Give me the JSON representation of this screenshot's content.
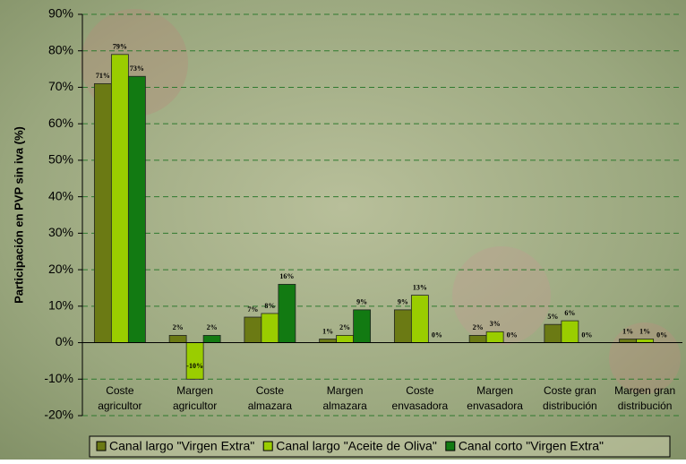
{
  "chart_data": {
    "type": "bar",
    "y_axis_label": "Participación en PVP sin iva (%)",
    "categories": [
      [
        "Coste",
        "agricultor"
      ],
      [
        "Margen",
        "agricultor"
      ],
      [
        "Coste",
        "almazara"
      ],
      [
        "Margen",
        "almazara"
      ],
      [
        "Coste",
        "envasadora"
      ],
      [
        "Margen",
        "envasadora"
      ],
      [
        "Coste gran",
        "distribución"
      ],
      [
        "Margen gran",
        "distribución"
      ]
    ],
    "series": [
      {
        "name": "Canal largo \"Virgen Extra\"",
        "color": "#6b7a14",
        "values": [
          71,
          2,
          7,
          1,
          9,
          2,
          5,
          1
        ],
        "value_labels": [
          "71%",
          "2%",
          "7%",
          "1%",
          "9%",
          "2%",
          "5%",
          "1%"
        ]
      },
      {
        "name": "Canal largo \"Aceite de Oliva\"",
        "color": "#9acd00",
        "values": [
          79,
          -10,
          8,
          2,
          13,
          3,
          6,
          1
        ],
        "value_labels": [
          "79%",
          "-10%",
          "8%",
          "2%",
          "13%",
          "3%",
          "6%",
          "1%"
        ]
      },
      {
        "name": "Canal corto \"Virgen Extra\"",
        "color": "#127a12",
        "values": [
          73,
          2,
          16,
          9,
          0,
          0,
          0,
          0
        ],
        "value_labels": [
          "73%",
          "2%",
          "16%",
          "9%",
          "0%",
          "0%",
          "0%",
          "0%"
        ]
      }
    ],
    "ylim": [
      -20,
      90
    ],
    "yticks": [
      {
        "value": -20,
        "label": "-20%"
      },
      {
        "value": -10,
        "label": "-10%"
      },
      {
        "value": 0,
        "label": "0%"
      },
      {
        "value": 10,
        "label": "10%"
      },
      {
        "value": 20,
        "label": "20%"
      },
      {
        "value": 30,
        "label": "30%"
      },
      {
        "value": 40,
        "label": "40%"
      },
      {
        "value": 50,
        "label": "50%"
      },
      {
        "value": 60,
        "label": "60%"
      },
      {
        "value": 70,
        "label": "70%"
      },
      {
        "value": 80,
        "label": "80%"
      },
      {
        "value": 90,
        "label": "90%"
      }
    ],
    "grid": true
  }
}
